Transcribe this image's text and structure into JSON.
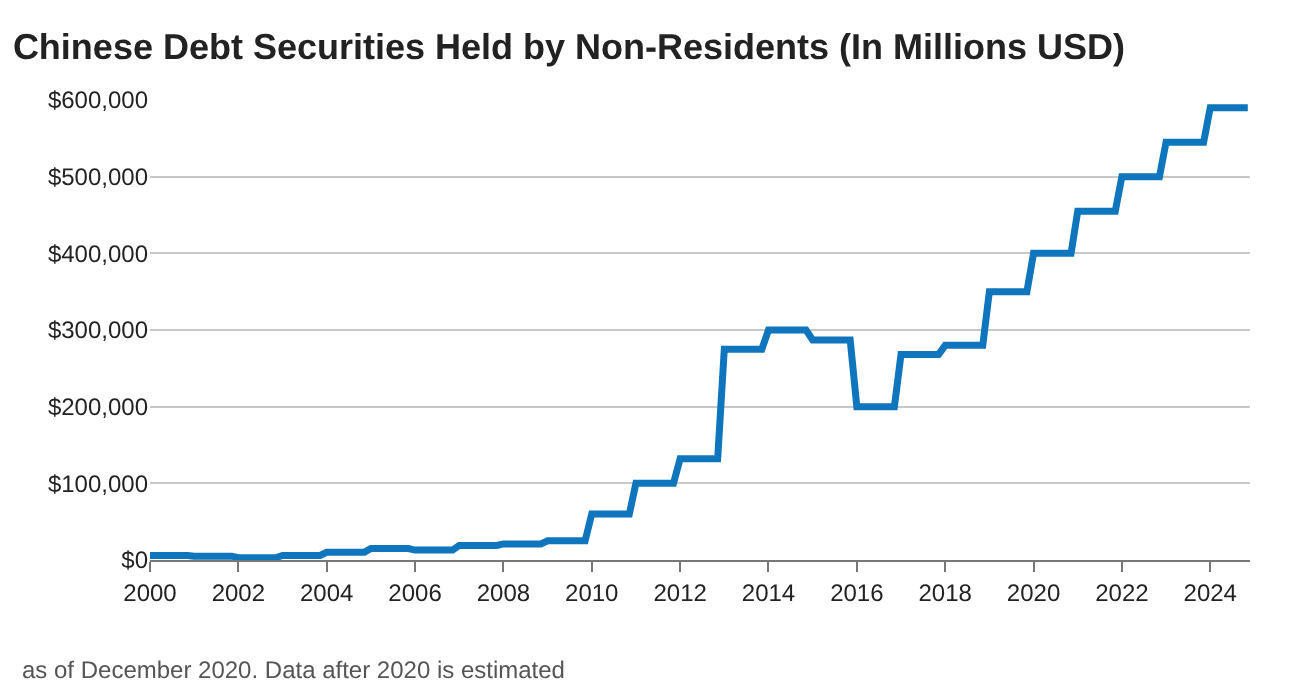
{
  "chart_data": {
    "type": "line",
    "title": "Chinese Debt Securities Held by Non-Residents (In Millions USD)",
    "annotations": [
      "as of December 2020. Data after 2020 is estimated"
    ],
    "x": [
      2000,
      2000.85,
      2001,
      2001.85,
      2002,
      2002.85,
      2003,
      2003.85,
      2004,
      2004.85,
      2005,
      2005.85,
      2006,
      2006.85,
      2007,
      2007.85,
      2008,
      2008.85,
      2009,
      2009.85,
      2010,
      2010.85,
      2011,
      2011.85,
      2012,
      2012.85,
      2013,
      2013.85,
      2014,
      2014.85,
      2015,
      2015.85,
      2016,
      2016.85,
      2017,
      2017.85,
      2018,
      2018.85,
      2019,
      2019.85,
      2020,
      2020.85,
      2021,
      2021.85,
      2022,
      2022.85,
      2023,
      2023.85,
      2024,
      2024.85
    ],
    "series": [
      {
        "color": "#0f75bc",
        "values": [
          6000,
          6000,
          5000,
          5000,
          3000,
          3000,
          6000,
          6000,
          10000,
          10000,
          15000,
          15000,
          13000,
          13000,
          19000,
          19000,
          21000,
          21000,
          25000,
          25000,
          60000,
          60000,
          100000,
          100000,
          132000,
          132000,
          275000,
          275000,
          300000,
          300000,
          287000,
          287000,
          200000,
          200000,
          268000,
          268000,
          280000,
          280000,
          350000,
          350000,
          400000,
          400000,
          455000,
          455000,
          500000,
          500000,
          545000,
          545000,
          590000,
          590000
        ]
      }
    ],
    "xlim": [
      2000,
      2024.9
    ],
    "ylim": [
      0,
      600000
    ],
    "xticks": [
      2000,
      2002,
      2004,
      2006,
      2008,
      2010,
      2012,
      2014,
      2016,
      2018,
      2020,
      2022,
      2024
    ],
    "yticks": [
      {
        "value": 0,
        "label": "$0"
      },
      {
        "value": 100000,
        "label": "$100,000"
      },
      {
        "value": 200000,
        "label": "$200,000"
      },
      {
        "value": 300000,
        "label": "$300,000"
      },
      {
        "value": 400000,
        "label": "$400,000"
      },
      {
        "value": 500000,
        "label": "$500,000"
      },
      {
        "value": 600000,
        "label": "$600,000"
      }
    ],
    "grid": "y",
    "legend": false,
    "marker": "none"
  }
}
